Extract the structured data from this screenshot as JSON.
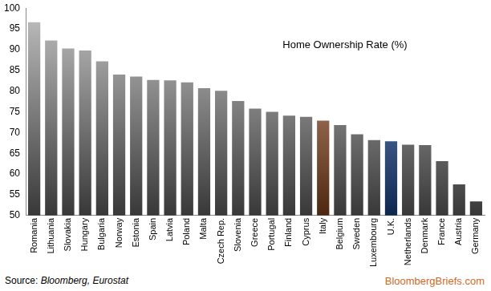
{
  "chart_data": {
    "type": "bar",
    "title": "Home Ownership Rate (%)",
    "source": "Source: Bloomberg, Eurostat",
    "annotations": [
      {
        "text": "BloombergBriefs.com"
      }
    ],
    "categories": [
      "Romania",
      "Lithuania",
      "Slovakia",
      "Hungary",
      "Bulgaria",
      "Norway",
      "Estonia",
      "Spain",
      "Latvia",
      "Poland",
      "Malta",
      "Czech Rep.",
      "Slovenia",
      "Greece",
      "Portugal",
      "Finland",
      "Cyprus",
      "Italy",
      "Belgium",
      "Sweden",
      "Luxembourg",
      "U.K.",
      "Netherlands",
      "Denmark",
      "France",
      "Austria",
      "Germany"
    ],
    "values": [
      96.6,
      92.2,
      90.3,
      89.8,
      87.2,
      84.0,
      83.5,
      82.7,
      82.6,
      82.1,
      80.7,
      80.1,
      77.6,
      75.8,
      75.0,
      74.1,
      73.8,
      72.9,
      71.8,
      69.6,
      68.2,
      67.9,
      67.1,
      67.0,
      63.1,
      57.5,
      53.4
    ],
    "colors": [
      "#8c8c8c",
      "#8c8c8c",
      "#8c8c8c",
      "#8c8c8c",
      "#8c8c8c",
      "#8c8c8c",
      "#8c8c8c",
      "#8c8c8c",
      "#8c8c8c",
      "#8c8c8c",
      "#8c8c8c",
      "#8c8c8c",
      "#8c8c8c",
      "#8c8c8c",
      "#8c8c8c",
      "#8c8c8c",
      "#8c8c8c",
      "#c0612b",
      "#8c8c8c",
      "#8c8c8c",
      "#8c8c8c",
      "#2160c4",
      "#8c8c8c",
      "#8c8c8c",
      "#8c8c8c",
      "#8c8c8c",
      "#8c8c8c"
    ],
    "ylim": [
      50,
      100
    ],
    "yticks": [
      50,
      55,
      60,
      65,
      70,
      75,
      80,
      85,
      90,
      95,
      100
    ],
    "grid": false
  }
}
